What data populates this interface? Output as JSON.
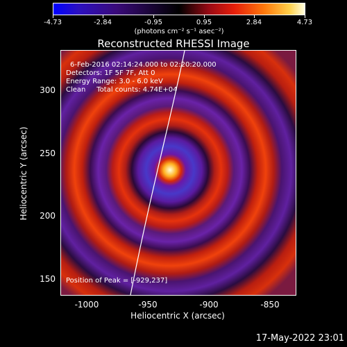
{
  "colorbar": {
    "ticks": [
      "-4.73",
      "-2.84",
      "-0.95",
      "0.95",
      "2.84",
      "4.73"
    ],
    "units": "(photons cm⁻² s⁻¹ asec⁻²)"
  },
  "plot": {
    "title": "Reconstructed RHESSI Image",
    "info_line1": "6-Feb-2016 02:14:24.000 to 02:20:20.000",
    "info_line2": "Detectors: 1F 5F 7F, Att 0",
    "info_line3": "Energy Range: 3.0 - 6.0 keV",
    "info_line4": "Clean     Total counts: 4.74E+04",
    "peak_label": "Position of Peak = [-929,237]",
    "x_axis_label": "Heliocentric X (arcsec)",
    "y_axis_label": "Heliocentric Y (arcsec)",
    "x_ticks": [
      "-1000",
      "-950",
      "-900",
      "-850"
    ],
    "y_ticks": [
      "300",
      "250",
      "200",
      "150"
    ],
    "x_range": [
      -1025,
      -833
    ],
    "y_range": [
      137,
      337
    ],
    "peak_position": [
      -929,
      237
    ],
    "colormap": "red-temperature"
  },
  "timestamp": "17-May-2022 23:01"
}
